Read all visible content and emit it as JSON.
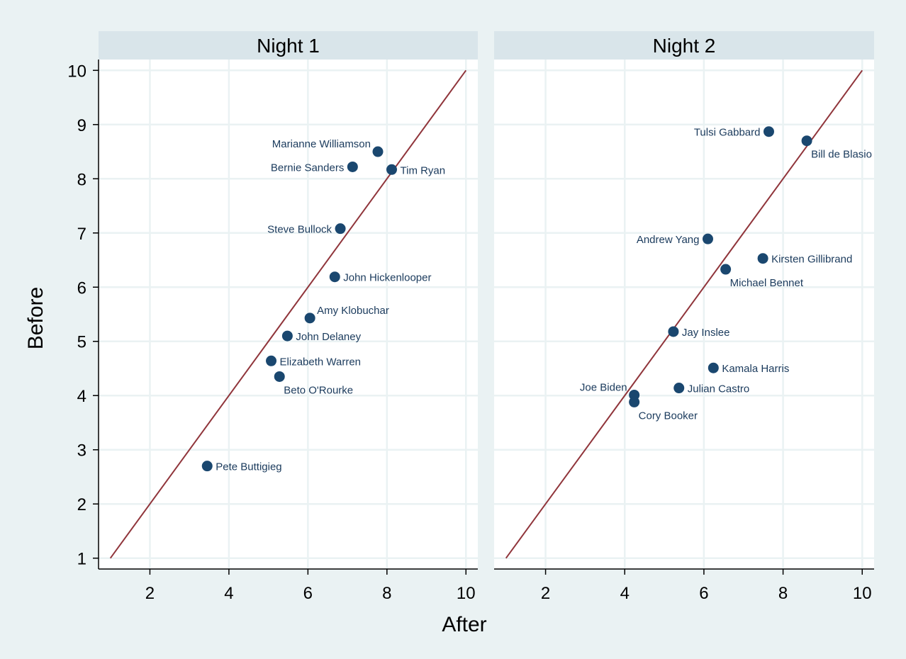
{
  "chart_data": {
    "type": "scatter",
    "xlabel": "After",
    "ylabel": "Before",
    "xlim": [
      0.7,
      10.3
    ],
    "ylim": [
      0.8,
      10.2
    ],
    "xticks": [
      2,
      4,
      6,
      8,
      10
    ],
    "yticks": [
      1,
      2,
      3,
      4,
      5,
      6,
      7,
      8,
      9,
      10
    ],
    "grid": true,
    "reference_line": {
      "from": [
        1,
        1
      ],
      "to": [
        10,
        10
      ]
    },
    "colors": {
      "background": "#eaf2f3",
      "plot_bg": "#ffffff",
      "header_bg": "#d9e5ea",
      "grid": "#eaf2f3",
      "marker": "#1a476f",
      "line": "#90353b",
      "label": "#1a3a5c"
    },
    "panels": [
      {
        "title": "Night 1",
        "points": [
          {
            "name": "Marianne Williamson",
            "x": 7.77,
            "y": 8.5,
            "label_pos": "upper-left"
          },
          {
            "name": "Bernie Sanders",
            "x": 7.13,
            "y": 8.22,
            "label_pos": "left"
          },
          {
            "name": "Tim Ryan",
            "x": 8.12,
            "y": 8.17,
            "label_pos": "right"
          },
          {
            "name": "Steve Bullock",
            "x": 6.82,
            "y": 7.08,
            "label_pos": "left"
          },
          {
            "name": "John Hickenlooper",
            "x": 6.68,
            "y": 6.19,
            "label_pos": "right"
          },
          {
            "name": "Amy Klobuchar",
            "x": 6.05,
            "y": 5.43,
            "label_pos": "upper-right"
          },
          {
            "name": "John Delaney",
            "x": 5.48,
            "y": 5.1,
            "label_pos": "right"
          },
          {
            "name": "Elizabeth Warren",
            "x": 5.07,
            "y": 4.64,
            "label_pos": "right"
          },
          {
            "name": "Beto O'Rourke",
            "x": 5.28,
            "y": 4.35,
            "label_pos": "lower-right"
          },
          {
            "name": "Pete Buttigieg",
            "x": 3.45,
            "y": 2.7,
            "label_pos": "right"
          }
        ]
      },
      {
        "title": "Night 2",
        "points": [
          {
            "name": "Tulsi Gabbard",
            "x": 7.64,
            "y": 8.87,
            "label_pos": "left"
          },
          {
            "name": "Bill de Blasio",
            "x": 8.6,
            "y": 8.7,
            "label_pos": "lower-right"
          },
          {
            "name": "Andrew Yang",
            "x": 6.1,
            "y": 6.89,
            "label_pos": "left"
          },
          {
            "name": "Kirsten Gillibrand",
            "x": 7.49,
            "y": 6.53,
            "label_pos": "right"
          },
          {
            "name": "Michael Bennet",
            "x": 6.55,
            "y": 6.33,
            "label_pos": "lower-right"
          },
          {
            "name": "Jay Inslee",
            "x": 5.23,
            "y": 5.18,
            "label_pos": "right"
          },
          {
            "name": "Kamala Harris",
            "x": 6.24,
            "y": 4.51,
            "label_pos": "right"
          },
          {
            "name": "Julian Castro",
            "x": 5.37,
            "y": 4.14,
            "label_pos": "right"
          },
          {
            "name": "Joe Biden",
            "x": 4.24,
            "y": 4.01,
            "label_pos": "upper-left"
          },
          {
            "name": "Cory Booker",
            "x": 4.24,
            "y": 3.88,
            "label_pos": "lower-right"
          }
        ]
      }
    ]
  }
}
